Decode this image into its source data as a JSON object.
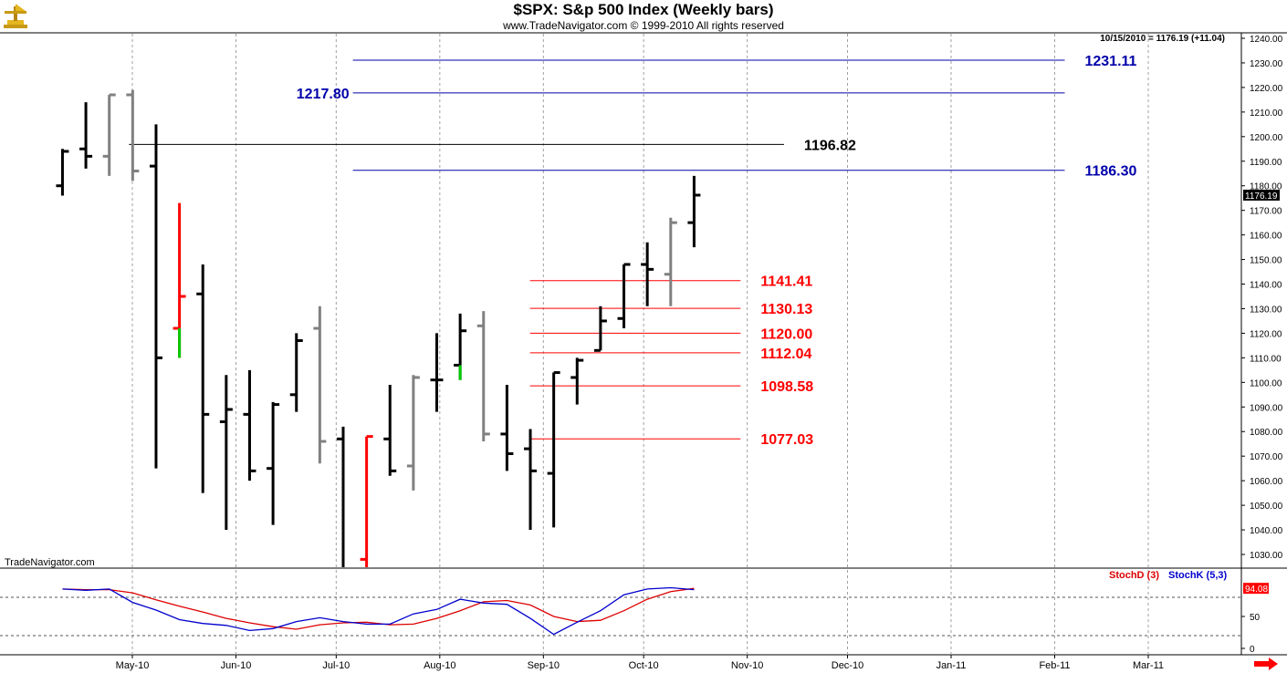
{
  "header": {
    "title": "$SPX:  S&p 500 Index  (Weekly bars)",
    "subtitle": "www.TradeNavigator.com © 1999-2010 All rights reserved",
    "quote": "10/15/2010 = 1176.19 (+11.04)",
    "watermark": "TradeNavigator.com"
  },
  "colors": {
    "bar_up": "#000000",
    "bar_gray": "#808080",
    "bar_red": "#ff0000",
    "bar_green": "#00cc00",
    "level_blue": "#0000aa",
    "level_red": "#ff0000",
    "level_black": "#000000",
    "stoch_d": "#dd0000",
    "stoch_k": "#0000cc"
  },
  "chart_data": [
    {
      "type": "ohlc",
      "ylim": [
        1021,
        1244
      ],
      "y_ticks": [
        "1030.00",
        "1040.00",
        "1050.00",
        "1060.00",
        "1070.00",
        "1080.00",
        "1090.00",
        "1100.00",
        "1110.00",
        "1120.00",
        "1130.00",
        "1140.00",
        "1150.00",
        "1160.00",
        "1170.00",
        "1180.00",
        "1190.00",
        "1200.00",
        "1210.00",
        "1220.00",
        "1230.00",
        "1240.00"
      ],
      "x_labels": [
        "May-10",
        "Jun-10",
        "Jul-10",
        "Aug-10",
        "Sep-10",
        "Oct-10",
        "Nov-10",
        "Dec-10",
        "Jan-11",
        "Feb-11",
        "Mar-11"
      ],
      "last_price_label": "1176.19",
      "bars": [
        {
          "date": "2010-04-09",
          "o": 1180,
          "h": 1195,
          "l": 1176,
          "c": 1194,
          "color": "black"
        },
        {
          "date": "2010-04-16",
          "o": 1195,
          "h": 1214,
          "l": 1187,
          "c": 1192,
          "color": "black"
        },
        {
          "date": "2010-04-23",
          "o": 1192,
          "h": 1217,
          "l": 1184,
          "c": 1217,
          "color": "gray"
        },
        {
          "date": "2010-04-30",
          "o": 1217,
          "h": 1219,
          "l": 1182,
          "c": 1186,
          "color": "gray"
        },
        {
          "date": "2010-05-07",
          "o": 1188,
          "h": 1205,
          "l": 1065,
          "c": 1110,
          "color": "black"
        },
        {
          "date": "2010-05-14",
          "o": 1122,
          "h": 1173,
          "l": 1110,
          "c": 1135,
          "color": "red",
          "wick_low": "green"
        },
        {
          "date": "2010-05-21",
          "o": 1136,
          "h": 1148,
          "l": 1055,
          "c": 1087,
          "color": "black"
        },
        {
          "date": "2010-05-28",
          "o": 1084,
          "h": 1103,
          "l": 1040,
          "c": 1089,
          "color": "black"
        },
        {
          "date": "2010-06-04",
          "o": 1087,
          "h": 1105,
          "l": 1060,
          "c": 1064,
          "color": "black"
        },
        {
          "date": "2010-06-11",
          "o": 1065,
          "h": 1092,
          "l": 1042,
          "c": 1091,
          "color": "black"
        },
        {
          "date": "2010-06-18",
          "o": 1095,
          "h": 1120,
          "l": 1088,
          "c": 1117,
          "color": "black"
        },
        {
          "date": "2010-06-25",
          "o": 1122,
          "h": 1131,
          "l": 1067,
          "c": 1076,
          "color": "gray"
        },
        {
          "date": "2010-07-02",
          "o": 1077,
          "h": 1082,
          "l": 1010,
          "c": 1022,
          "color": "black"
        },
        {
          "date": "2010-07-09",
          "o": 1028,
          "h": 1078,
          "l": 1010,
          "c": 1078,
          "color": "red"
        },
        {
          "date": "2010-07-16",
          "o": 1077,
          "h": 1099,
          "l": 1062,
          "c": 1064,
          "color": "black"
        },
        {
          "date": "2010-07-23",
          "o": 1066,
          "h": 1103,
          "l": 1056,
          "c": 1102,
          "color": "gray"
        },
        {
          "date": "2010-07-30",
          "o": 1101,
          "h": 1120,
          "l": 1088,
          "c": 1101,
          "color": "black"
        },
        {
          "date": "2010-08-06",
          "o": 1107,
          "h": 1128,
          "l": 1101,
          "c": 1121,
          "color": "black",
          "wick_low": "green"
        },
        {
          "date": "2010-08-13",
          "o": 1123,
          "h": 1129,
          "l": 1076,
          "c": 1079,
          "color": "gray"
        },
        {
          "date": "2010-08-20",
          "o": 1079,
          "h": 1099,
          "l": 1064,
          "c": 1071,
          "color": "black"
        },
        {
          "date": "2010-08-27",
          "o": 1073,
          "h": 1081,
          "l": 1040,
          "c": 1064,
          "color": "black"
        },
        {
          "date": "2010-09-03",
          "o": 1063,
          "h": 1104,
          "l": 1041,
          "c": 1104,
          "color": "black"
        },
        {
          "date": "2010-09-10",
          "o": 1102,
          "h": 1110,
          "l": 1091,
          "c": 1109,
          "color": "black"
        },
        {
          "date": "2010-09-17",
          "o": 1113,
          "h": 1131,
          "l": 1113,
          "c": 1125,
          "color": "black",
          "wick_low": "green"
        },
        {
          "date": "2010-09-24",
          "o": 1126,
          "h": 1148,
          "l": 1122,
          "c": 1148,
          "color": "black"
        },
        {
          "date": "2010-10-01",
          "o": 1148,
          "h": 1157,
          "l": 1131,
          "c": 1146,
          "color": "black"
        },
        {
          "date": "2010-10-08",
          "o": 1144,
          "h": 1167,
          "l": 1131,
          "c": 1165,
          "color": "gray"
        },
        {
          "date": "2010-10-15",
          "o": 1165,
          "h": 1184,
          "l": 1155,
          "c": 1176.19,
          "color": "black"
        }
      ],
      "levels": [
        {
          "value": 1231.11,
          "label": "1231.11",
          "color": "blue",
          "from": "2010-07-06",
          "to": "2011-02-04",
          "label_side": "right"
        },
        {
          "value": 1217.8,
          "label": "1217.80",
          "color": "blue",
          "from": "2010-07-06",
          "to": "2011-02-04",
          "label_side": "left"
        },
        {
          "value": 1196.82,
          "label": "1196.82",
          "color": "black",
          "from": "2010-04-30",
          "to": "2010-11-12",
          "label_side": "right"
        },
        {
          "value": 1186.3,
          "label": "1186.30",
          "color": "blue",
          "from": "2010-07-06",
          "to": "2011-02-04",
          "label_side": "right"
        },
        {
          "value": 1141.41,
          "label": "1141.41",
          "color": "red",
          "from": "2010-08-28",
          "to": "2010-10-30",
          "label_side": "right"
        },
        {
          "value": 1130.13,
          "label": "1130.13",
          "color": "red",
          "from": "2010-08-28",
          "to": "2010-10-30",
          "label_side": "right"
        },
        {
          "value": 1120.0,
          "label": "1120.00",
          "color": "red",
          "from": "2010-08-28",
          "to": "2010-10-30",
          "label_side": "right"
        },
        {
          "value": 1112.04,
          "label": "1112.04",
          "color": "red",
          "from": "2010-08-28",
          "to": "2010-10-30",
          "label_side": "right"
        },
        {
          "value": 1098.58,
          "label": "1098.58",
          "color": "red",
          "from": "2010-08-28",
          "to": "2010-10-30",
          "label_side": "right"
        },
        {
          "value": 1077.03,
          "label": "1077.03",
          "color": "red",
          "from": "2010-08-28",
          "to": "2010-10-30",
          "label_side": "right"
        }
      ]
    },
    {
      "type": "line",
      "ylim": [
        -5,
        105
      ],
      "y_ticks": [
        "0",
        "50"
      ],
      "dashed_levels": [
        20,
        80
      ],
      "last_value_label": "94.08",
      "series": [
        {
          "name": "StochD (3)",
          "values": [
            93,
            92,
            92,
            87,
            76,
            66,
            57,
            47,
            40,
            34,
            30,
            37,
            40,
            41,
            37,
            38,
            47,
            59,
            73,
            75,
            68,
            50,
            42,
            44,
            59,
            77,
            89,
            94
          ]
        },
        {
          "name": "StochK (5,3)",
          "values": [
            93,
            91,
            93,
            72,
            60,
            45,
            39,
            36,
            28,
            31,
            42,
            48,
            42,
            38,
            38,
            54,
            61,
            77,
            71,
            69,
            47,
            22,
            41,
            59,
            84,
            93,
            95,
            92
          ]
        }
      ]
    }
  ]
}
